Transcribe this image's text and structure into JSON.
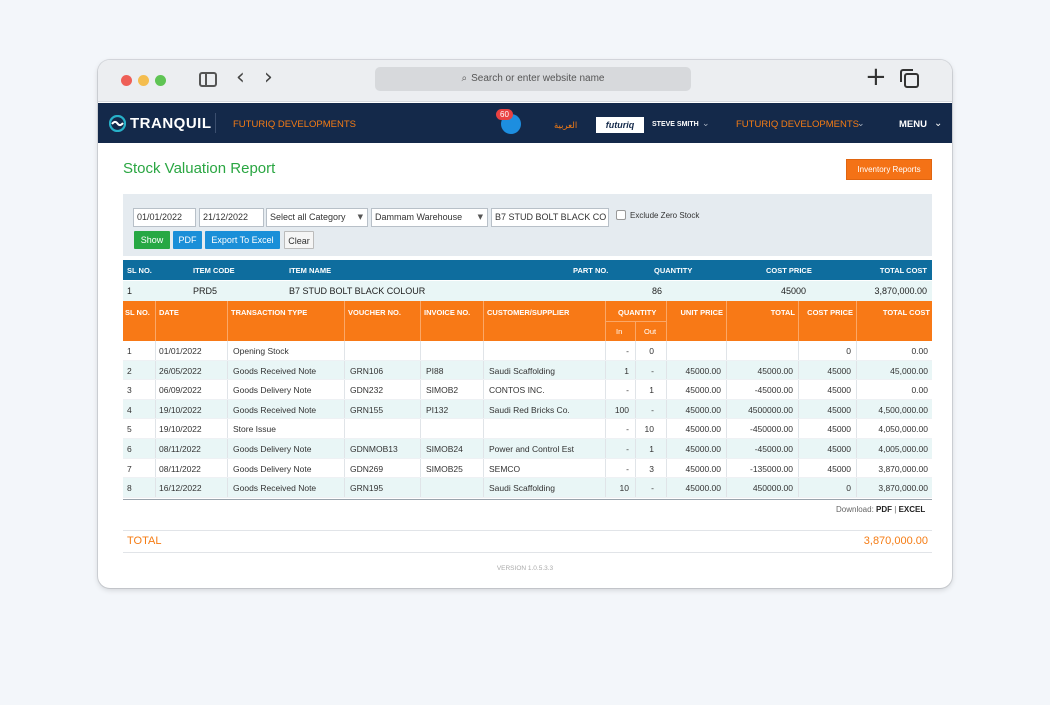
{
  "browser": {
    "url_placeholder": "Search or enter website name"
  },
  "appbar": {
    "brand": "TRANQUIL",
    "company_left": "FUTURIQ DEVELOPMENTS",
    "notification_count": "60",
    "language": "العربية",
    "partner_logo": "futuriq",
    "user": "STEVE SMITH",
    "company_right": "FUTURIQ DEVELOPMENTS",
    "menu": "MENU"
  },
  "page": {
    "title": "Stock Valuation Report",
    "inventory_button": "Inventory Reports"
  },
  "filters": {
    "from_date": "01/01/2022",
    "to_date": "21/12/2022",
    "category": "Select all Category",
    "warehouse": "Dammam Warehouse",
    "item": "B7 STUD BOLT BLACK CO",
    "exclude_zero": "Exclude Zero Stock",
    "buttons": {
      "show": "Show",
      "pdf": "PDF",
      "excel": "Export To Excel",
      "clear": "Clear"
    }
  },
  "summary": {
    "headers": [
      "SL NO.",
      "ITEM CODE",
      "ITEM NAME",
      "PART NO.",
      "QUANTITY",
      "COST PRICE",
      "TOTAL COST"
    ],
    "row": {
      "sl": "1",
      "code": "PRD5",
      "name": "B7 STUD BOLT BLACK COLOUR",
      "part": "",
      "qty": "86",
      "cost": "45000",
      "total": "3,870,000.00"
    }
  },
  "detail": {
    "headers": {
      "sl": "SL NO.",
      "date": "DATE",
      "type": "TRANSACTION TYPE",
      "voucher": "VOUCHER NO.",
      "invoice": "INVOICE NO.",
      "customer": "CUSTOMER/SUPPLIER",
      "quantity": "QUANTITY",
      "in": "In",
      "out": "Out",
      "unit_price": "UNIT PRICE",
      "total": "TOTAL",
      "cost_price": "COST PRICE",
      "total_cost": "TOTAL COST"
    },
    "rows": [
      {
        "sl": "1",
        "date": "01/01/2022",
        "type": "Opening Stock",
        "voucher": "",
        "invoice": "",
        "customer": "",
        "in": "-",
        "out": "0",
        "unit": "",
        "total": "",
        "cost": "0",
        "total_cost": "0.00"
      },
      {
        "sl": "2",
        "date": "26/05/2022",
        "type": "Goods Received Note",
        "voucher": "GRN106",
        "invoice": "PI88",
        "customer": "Saudi Scaffolding",
        "in": "1",
        "out": "-",
        "unit": "45000.00",
        "total": "45000.00",
        "cost": "45000",
        "total_cost": "45,000.00"
      },
      {
        "sl": "3",
        "date": "06/09/2022",
        "type": "Goods Delivery Note",
        "voucher": "GDN232",
        "invoice": "SIMOB2",
        "customer": "CONTOS INC.",
        "in": "-",
        "out": "1",
        "unit": "45000.00",
        "total": "-45000.00",
        "cost": "45000",
        "total_cost": "0.00"
      },
      {
        "sl": "4",
        "date": "19/10/2022",
        "type": "Goods Received Note",
        "voucher": "GRN155",
        "invoice": "PI132",
        "customer": "Saudi Red Bricks Co.",
        "in": "100",
        "out": "-",
        "unit": "45000.00",
        "total": "4500000.00",
        "cost": "45000",
        "total_cost": "4,500,000.00"
      },
      {
        "sl": "5",
        "date": "19/10/2022",
        "type": "Store Issue",
        "voucher": "",
        "invoice": "",
        "customer": "",
        "in": "-",
        "out": "10",
        "unit": "45000.00",
        "total": "-450000.00",
        "cost": "45000",
        "total_cost": "4,050,000.00"
      },
      {
        "sl": "6",
        "date": "08/11/2022",
        "type": "Goods Delivery Note",
        "voucher": "GDNMOB13",
        "invoice": "SIMOB24",
        "customer": "Power and Control Est",
        "in": "-",
        "out": "1",
        "unit": "45000.00",
        "total": "-45000.00",
        "cost": "45000",
        "total_cost": "4,005,000.00"
      },
      {
        "sl": "7",
        "date": "08/11/2022",
        "type": "Goods Delivery Note",
        "voucher": "GDN269",
        "invoice": "SIMOB25",
        "customer": "SEMCO",
        "in": "-",
        "out": "3",
        "unit": "45000.00",
        "total": "-135000.00",
        "cost": "45000",
        "total_cost": "3,870,000.00"
      },
      {
        "sl": "8",
        "date": "16/12/2022",
        "type": "Goods Received Note",
        "voucher": "GRN195",
        "invoice": "",
        "customer": "Saudi Scaffolding",
        "in": "10",
        "out": "-",
        "unit": "45000.00",
        "total": "450000.00",
        "cost": "0",
        "total_cost": "3,870,000.00"
      }
    ]
  },
  "download": {
    "label": "Download:",
    "pdf": "PDF",
    "sep": "|",
    "excel": "EXCEL"
  },
  "total": {
    "label": "TOTAL",
    "value": "3,870,000.00"
  },
  "version": "VERSION 1.0.5.3.3"
}
